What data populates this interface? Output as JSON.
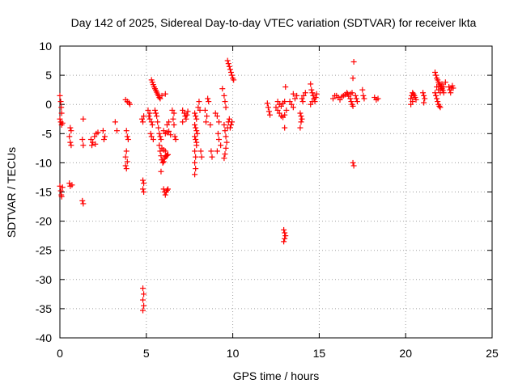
{
  "chart_data": {
    "type": "scatter",
    "title": "Day 142 of 2025, Sidereal Day-to-day VTEC variation (SDTVAR) for receiver lkta",
    "xlabel": "GPS time / hours",
    "ylabel": "SDTVAR / TECUs",
    "xlim": [
      0,
      25
    ],
    "ylim": [
      -40,
      10
    ],
    "xticks": [
      "0",
      "5",
      "10",
      "15",
      "20",
      "25"
    ],
    "yticks": [
      "10",
      "5",
      "0",
      "-5",
      "-10",
      "-15",
      "-20",
      "-25",
      "-30",
      "-35",
      "-40"
    ],
    "grid": true,
    "marker": "+",
    "color": "#ff0000",
    "series": [
      {
        "name": "SDTVAR",
        "points": [
          [
            0.0,
            1.5
          ],
          [
            0.05,
            0.5
          ],
          [
            0.08,
            -0.5
          ],
          [
            0.1,
            -1.5
          ],
          [
            0.0,
            -2.5
          ],
          [
            0.05,
            -3.0
          ],
          [
            0.1,
            -3.5
          ],
          [
            0.15,
            -3.2
          ],
          [
            0.0,
            -14.0
          ],
          [
            0.05,
            -14.8
          ],
          [
            0.08,
            -15.5
          ],
          [
            0.1,
            -15.8
          ],
          [
            0.15,
            -14.2
          ],
          [
            0.6,
            -4.0
          ],
          [
            0.65,
            -4.5
          ],
          [
            0.55,
            -5.5
          ],
          [
            0.6,
            -6.5
          ],
          [
            0.65,
            -7.0
          ],
          [
            0.55,
            -13.5
          ],
          [
            0.6,
            -14.0
          ],
          [
            0.7,
            -13.8
          ],
          [
            1.35,
            -2.5
          ],
          [
            1.3,
            -6.0
          ],
          [
            1.35,
            -7.0
          ],
          [
            1.3,
            -16.5
          ],
          [
            1.35,
            -17.0
          ],
          [
            1.8,
            -6.0
          ],
          [
            1.9,
            -6.5
          ],
          [
            2.0,
            -5.5
          ],
          [
            2.1,
            -5.0
          ],
          [
            2.2,
            -4.8
          ],
          [
            1.85,
            -7.0
          ],
          [
            2.05,
            -6.8
          ],
          [
            2.5,
            -4.5
          ],
          [
            2.6,
            -5.5
          ],
          [
            2.55,
            -6.0
          ],
          [
            3.2,
            -3.0
          ],
          [
            3.3,
            -4.5
          ],
          [
            3.8,
            0.8
          ],
          [
            3.9,
            0.5
          ],
          [
            4.0,
            0.3
          ],
          [
            4.05,
            0.0
          ],
          [
            3.85,
            -4.5
          ],
          [
            3.9,
            -5.5
          ],
          [
            3.95,
            -6.0
          ],
          [
            3.85,
            -8.0
          ],
          [
            3.8,
            -9.0
          ],
          [
            3.9,
            -9.8
          ],
          [
            3.8,
            -10.5
          ],
          [
            3.85,
            -11.0
          ],
          [
            4.75,
            -2.5
          ],
          [
            4.8,
            -3.0
          ],
          [
            4.85,
            -2.0
          ],
          [
            4.8,
            -13.0
          ],
          [
            4.85,
            -13.5
          ],
          [
            4.8,
            -14.5
          ],
          [
            4.85,
            -15.0
          ],
          [
            4.8,
            -31.5
          ],
          [
            4.85,
            -32.5
          ],
          [
            4.8,
            -33.5
          ],
          [
            4.85,
            -34.5
          ],
          [
            4.8,
            -35.3
          ],
          [
            5.2,
            -2.5
          ],
          [
            5.3,
            -3.0
          ],
          [
            5.35,
            -3.5
          ],
          [
            5.25,
            -5.0
          ],
          [
            5.3,
            -5.5
          ],
          [
            5.4,
            -6.0
          ],
          [
            5.1,
            -1.0
          ],
          [
            5.2,
            -1.5
          ],
          [
            5.15,
            -2.0
          ],
          [
            5.3,
            4.2
          ],
          [
            5.35,
            3.8
          ],
          [
            5.4,
            3.4
          ],
          [
            5.45,
            3.0
          ],
          [
            5.5,
            2.7
          ],
          [
            5.55,
            2.4
          ],
          [
            5.6,
            2.1
          ],
          [
            5.65,
            1.8
          ],
          [
            5.7,
            1.5
          ],
          [
            5.75,
            1.2
          ],
          [
            5.8,
            1.0
          ],
          [
            5.9,
            1.5
          ],
          [
            6.1,
            1.8
          ],
          [
            5.5,
            -1.0
          ],
          [
            5.55,
            -1.5
          ],
          [
            5.6,
            -2.0
          ],
          [
            5.65,
            -3.0
          ],
          [
            5.7,
            -4.0
          ],
          [
            5.75,
            -5.0
          ],
          [
            5.8,
            -5.5
          ],
          [
            5.85,
            -6.0
          ],
          [
            5.75,
            -7.0
          ],
          [
            5.8,
            -8.0
          ],
          [
            5.85,
            -8.8
          ],
          [
            5.9,
            -9.5
          ],
          [
            5.95,
            -10.0
          ],
          [
            6.0,
            -9.8
          ],
          [
            6.05,
            -9.3
          ],
          [
            6.1,
            -9.0
          ],
          [
            6.15,
            -8.8
          ],
          [
            6.2,
            -8.7
          ],
          [
            6.25,
            -8.6
          ],
          [
            5.9,
            -7.5
          ],
          [
            6.0,
            -7.8
          ],
          [
            6.1,
            -8.0
          ],
          [
            5.85,
            -11.5
          ],
          [
            6.0,
            -14.5
          ],
          [
            6.05,
            -15.0
          ],
          [
            6.1,
            -15.5
          ],
          [
            6.15,
            -15.0
          ],
          [
            6.2,
            -14.7
          ],
          [
            6.25,
            -14.5
          ],
          [
            6.0,
            -4.5
          ],
          [
            6.1,
            -5.0
          ],
          [
            6.2,
            -4.8
          ],
          [
            6.3,
            -4.6
          ],
          [
            6.4,
            -5.2
          ],
          [
            6.2,
            -3.5
          ],
          [
            6.3,
            -3.0
          ],
          [
            6.5,
            -1.0
          ],
          [
            6.6,
            -1.5
          ],
          [
            6.55,
            -2.5
          ],
          [
            6.6,
            -3.5
          ],
          [
            6.65,
            -5.5
          ],
          [
            6.7,
            -6.0
          ],
          [
            7.1,
            -1.0
          ],
          [
            7.2,
            -1.5
          ],
          [
            7.25,
            -2.0
          ],
          [
            7.3,
            -2.5
          ],
          [
            7.35,
            -1.8
          ],
          [
            7.4,
            -1.2
          ],
          [
            7.1,
            -3.0
          ],
          [
            7.8,
            -1.5
          ],
          [
            7.85,
            -2.0
          ],
          [
            7.9,
            -2.5
          ],
          [
            7.8,
            -3.5
          ],
          [
            7.85,
            -4.0
          ],
          [
            7.9,
            -4.5
          ],
          [
            7.95,
            -5.0
          ],
          [
            7.8,
            -5.5
          ],
          [
            7.85,
            -6.0
          ],
          [
            7.9,
            -7.0
          ],
          [
            7.8,
            -8.0
          ],
          [
            7.85,
            -9.0
          ],
          [
            7.8,
            -10.0
          ],
          [
            7.85,
            -11.0
          ],
          [
            7.8,
            -12.0
          ],
          [
            7.9,
            -6.5
          ],
          [
            8.0,
            -0.5
          ],
          [
            8.1,
            -1.0
          ],
          [
            8.05,
            0.5
          ],
          [
            8.15,
            -8.0
          ],
          [
            8.2,
            -9.0
          ],
          [
            8.4,
            -1.0
          ],
          [
            8.5,
            -2.0
          ],
          [
            8.45,
            -3.0
          ],
          [
            8.55,
            1.0
          ],
          [
            8.6,
            0.5
          ],
          [
            8.7,
            -3.5
          ],
          [
            8.75,
            -8.0
          ],
          [
            8.8,
            -9.0
          ],
          [
            9.0,
            -1.5
          ],
          [
            9.1,
            -2.0
          ],
          [
            9.2,
            -3.0
          ],
          [
            9.15,
            -5.0
          ],
          [
            9.2,
            -6.0
          ],
          [
            9.3,
            -7.0
          ],
          [
            9.1,
            -8.0
          ],
          [
            9.4,
            2.7
          ],
          [
            9.5,
            1.5
          ],
          [
            9.55,
            0.5
          ],
          [
            9.6,
            -0.5
          ],
          [
            9.5,
            -3.5
          ],
          [
            9.55,
            -4.5
          ],
          [
            9.6,
            -5.5
          ],
          [
            9.65,
            -6.5
          ],
          [
            9.6,
            -7.5
          ],
          [
            9.55,
            -8.5
          ],
          [
            9.5,
            -9.2
          ],
          [
            9.7,
            -4.0
          ],
          [
            9.75,
            -3.0
          ],
          [
            9.8,
            -2.5
          ],
          [
            9.85,
            -4.0
          ],
          [
            9.9,
            -3.5
          ],
          [
            9.95,
            -3.0
          ],
          [
            9.7,
            7.5
          ],
          [
            9.75,
            7.0
          ],
          [
            9.8,
            6.5
          ],
          [
            9.85,
            6.0
          ],
          [
            9.9,
            5.5
          ],
          [
            9.95,
            5.0
          ],
          [
            10.0,
            4.5
          ],
          [
            10.05,
            4.2
          ],
          [
            12.0,
            0.2
          ],
          [
            12.05,
            -0.5
          ],
          [
            12.1,
            -1.2
          ],
          [
            12.15,
            -1.8
          ],
          [
            12.5,
            -0.5
          ],
          [
            12.6,
            -1.0
          ],
          [
            12.7,
            -1.5
          ],
          [
            12.8,
            -2.0
          ],
          [
            12.9,
            -2.2
          ],
          [
            13.0,
            -1.8
          ],
          [
            13.1,
            -1.0
          ],
          [
            12.6,
            0.5
          ],
          [
            12.7,
            0.0
          ],
          [
            12.8,
            -0.3
          ],
          [
            12.9,
            0.2
          ],
          [
            13.0,
            0.5
          ],
          [
            13.05,
            3.0
          ],
          [
            13.0,
            -4.0
          ],
          [
            12.95,
            -21.5
          ],
          [
            13.0,
            -22.0
          ],
          [
            13.05,
            -22.5
          ],
          [
            13.0,
            -23.0
          ],
          [
            12.95,
            -23.5
          ],
          [
            13.3,
            0.5
          ],
          [
            13.4,
            0.0
          ],
          [
            13.5,
            -0.5
          ],
          [
            13.6,
            1.0
          ],
          [
            13.7,
            1.5
          ],
          [
            13.5,
            1.8
          ],
          [
            13.9,
            -1.5
          ],
          [
            13.95,
            -2.0
          ],
          [
            14.0,
            -2.5
          ],
          [
            13.95,
            -3.0
          ],
          [
            13.9,
            -4.0
          ],
          [
            14.0,
            1.0
          ],
          [
            14.05,
            0.5
          ],
          [
            14.1,
            1.5
          ],
          [
            14.2,
            2.0
          ],
          [
            14.5,
            3.5
          ],
          [
            14.55,
            2.5
          ],
          [
            14.6,
            2.0
          ],
          [
            14.65,
            1.5
          ],
          [
            14.7,
            1.0
          ],
          [
            14.75,
            0.5
          ],
          [
            14.8,
            1.2
          ],
          [
            14.85,
            1.8
          ],
          [
            14.6,
            0.5
          ],
          [
            14.5,
            0.0
          ],
          [
            15.8,
            1.0
          ],
          [
            15.9,
            1.5
          ],
          [
            16.0,
            1.5
          ],
          [
            16.1,
            1.2
          ],
          [
            16.2,
            0.8
          ],
          [
            16.3,
            1.3
          ],
          [
            16.4,
            1.5
          ],
          [
            16.5,
            1.7
          ],
          [
            16.6,
            2.0
          ],
          [
            16.65,
            1.8
          ],
          [
            16.7,
            1.4
          ],
          [
            16.8,
            1.0
          ],
          [
            16.85,
            0.5
          ],
          [
            16.9,
            0.0
          ],
          [
            16.95,
            -0.3
          ],
          [
            16.8,
            1.8
          ],
          [
            16.9,
            2.0
          ],
          [
            17.0,
            7.3
          ],
          [
            16.95,
            -10.0
          ],
          [
            17.0,
            -10.5
          ],
          [
            17.1,
            1.5
          ],
          [
            17.15,
            1.0
          ],
          [
            17.2,
            0.5
          ],
          [
            16.95,
            4.5
          ],
          [
            17.5,
            2.5
          ],
          [
            17.55,
            1.5
          ],
          [
            17.6,
            1.0
          ],
          [
            18.2,
            1.2
          ],
          [
            18.3,
            0.8
          ],
          [
            18.4,
            1.0
          ],
          [
            20.3,
            1.0
          ],
          [
            20.35,
            1.5
          ],
          [
            20.4,
            2.0
          ],
          [
            20.45,
            1.8
          ],
          [
            20.5,
            1.5
          ],
          [
            20.55,
            1.2
          ],
          [
            20.6,
            0.8
          ],
          [
            20.4,
            0.5
          ],
          [
            20.3,
            0.0
          ],
          [
            21.0,
            2.0
          ],
          [
            21.05,
            1.5
          ],
          [
            21.1,
            1.0
          ],
          [
            21.05,
            0.3
          ],
          [
            21.7,
            5.5
          ],
          [
            21.75,
            5.0
          ],
          [
            21.8,
            4.5
          ],
          [
            21.85,
            4.2
          ],
          [
            21.9,
            3.8
          ],
          [
            21.95,
            3.5
          ],
          [
            22.0,
            3.2
          ],
          [
            22.05,
            3.0
          ],
          [
            22.1,
            2.7
          ],
          [
            22.15,
            2.4
          ],
          [
            22.2,
            2.0
          ],
          [
            21.75,
            1.5
          ],
          [
            21.8,
            1.0
          ],
          [
            21.85,
            0.5
          ],
          [
            21.9,
            0.0
          ],
          [
            21.95,
            -0.3
          ],
          [
            22.0,
            -0.5
          ],
          [
            21.7,
            2.0
          ],
          [
            21.8,
            3.0
          ],
          [
            21.9,
            2.5
          ],
          [
            22.0,
            2.0
          ],
          [
            22.1,
            3.5
          ],
          [
            22.2,
            3.0
          ],
          [
            22.3,
            3.8
          ],
          [
            22.5,
            3.0
          ],
          [
            22.55,
            2.5
          ],
          [
            22.6,
            2.0
          ],
          [
            22.65,
            2.8
          ],
          [
            22.7,
            3.2
          ],
          [
            22.75,
            2.8
          ]
        ]
      }
    ]
  }
}
